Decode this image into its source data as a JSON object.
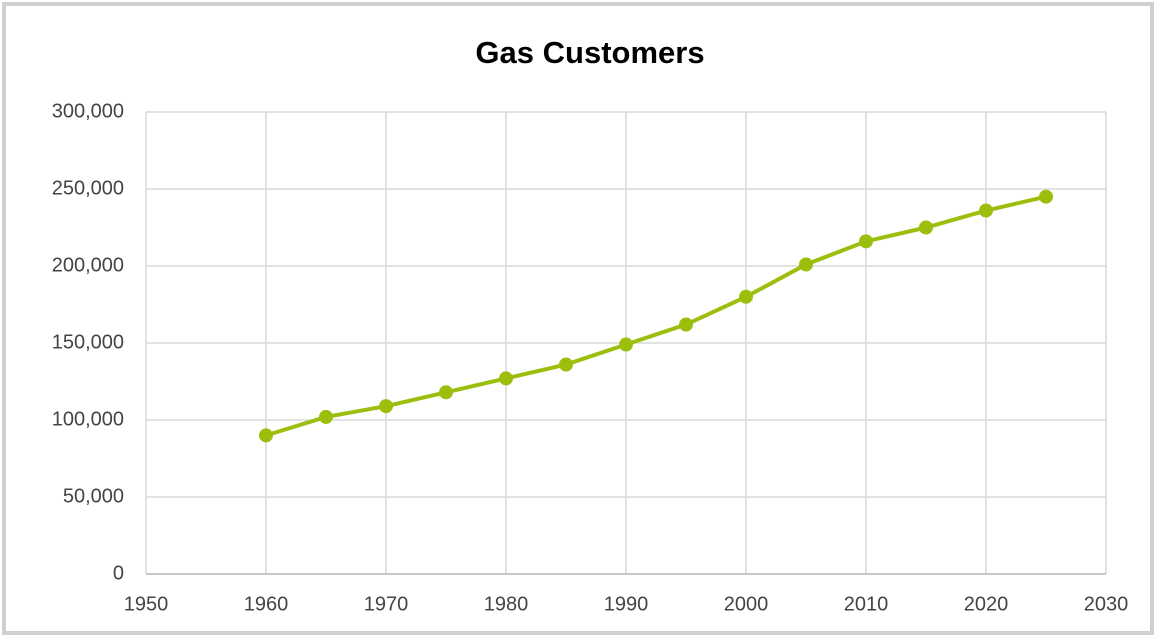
{
  "chart_data": {
    "type": "line",
    "title": "Gas Customers",
    "x": [
      1960,
      1965,
      1970,
      1975,
      1980,
      1985,
      1990,
      1995,
      2000,
      2005,
      2010,
      2015,
      2020,
      2025
    ],
    "series": [
      {
        "name": "Gas Customers",
        "color": "#9cbf0e",
        "values": [
          90000,
          102000,
          109000,
          118000,
          127000,
          136000,
          149000,
          162000,
          180000,
          201000,
          216000,
          225000,
          236000,
          245000
        ]
      }
    ],
    "xlim": [
      1950,
      2030
    ],
    "xticks": [
      1950,
      1960,
      1970,
      1980,
      1990,
      2000,
      2010,
      2020,
      2030
    ],
    "ylim": [
      0,
      300000
    ],
    "yticks": [
      0,
      {
        "value": 50000,
        "label": "50,000"
      },
      {
        "value": 100000,
        "label": "100,000"
      },
      {
        "value": 150000,
        "label": "150,000"
      },
      {
        "value": 200000,
        "label": "200,000"
      },
      {
        "value": 250000,
        "label": "250,000"
      },
      {
        "value": 300000,
        "label": "300,000"
      }
    ],
    "grid": true
  }
}
